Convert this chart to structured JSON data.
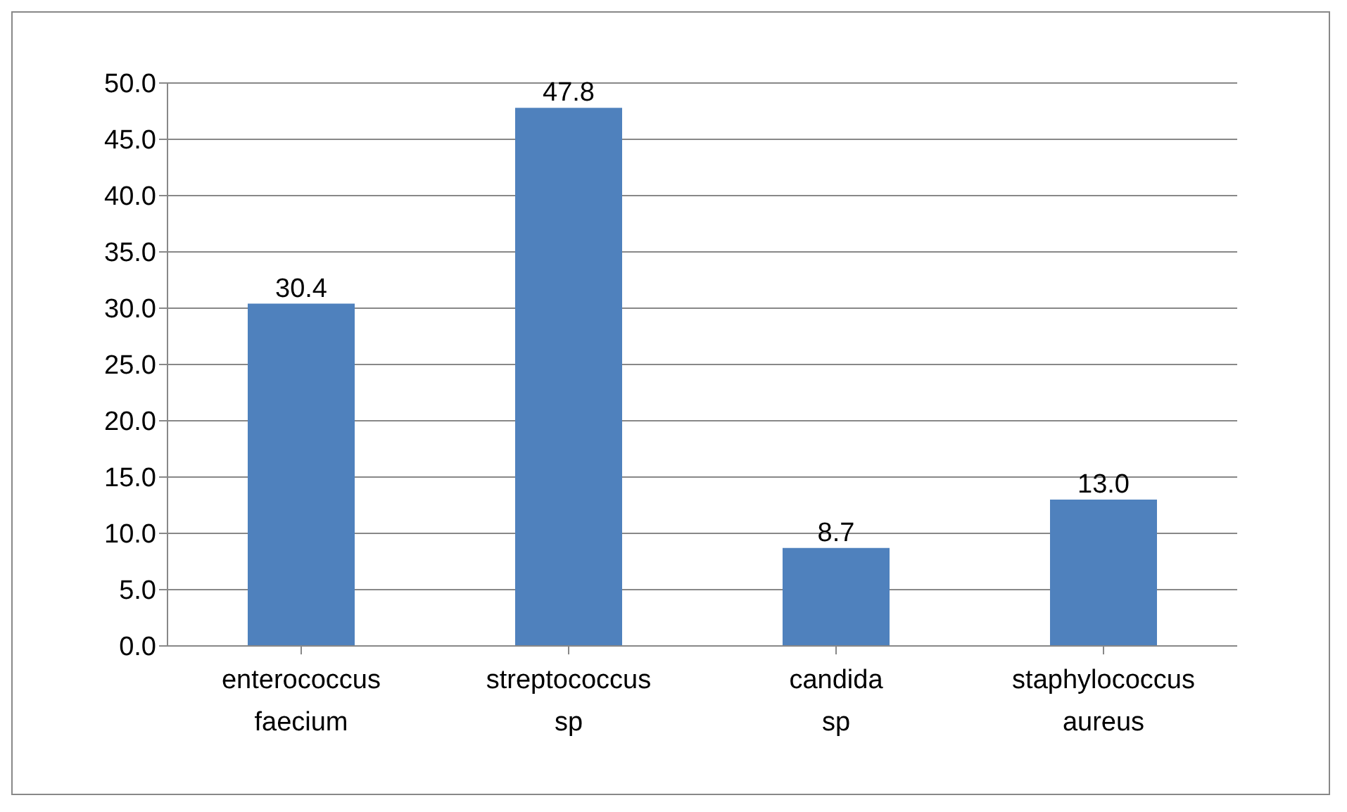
{
  "chart_data": {
    "type": "bar",
    "categories": [
      "enterococcus faecium",
      "streptococcus sp",
      "candida sp",
      "staphylococcus aureus"
    ],
    "values": [
      30.4,
      47.8,
      8.7,
      13.0
    ],
    "value_labels": [
      "30.4",
      "47.8",
      "8.7",
      "13.0"
    ],
    "color": "#4f81bd",
    "ylim": [
      0,
      50
    ],
    "yticks": [
      {
        "value": 0,
        "label": "0.0"
      },
      {
        "value": 5,
        "label": "5.0"
      },
      {
        "value": 10,
        "label": "10.0"
      },
      {
        "value": 15,
        "label": "15.0"
      },
      {
        "value": 20,
        "label": "20.0"
      },
      {
        "value": 25,
        "label": "25.0"
      },
      {
        "value": 30,
        "label": "30.0"
      },
      {
        "value": 35,
        "label": "35.0"
      },
      {
        "value": 40,
        "label": "40.0"
      },
      {
        "value": 45,
        "label": "45.0"
      },
      {
        "value": 50,
        "label": "50.0"
      }
    ],
    "grid": "y"
  }
}
